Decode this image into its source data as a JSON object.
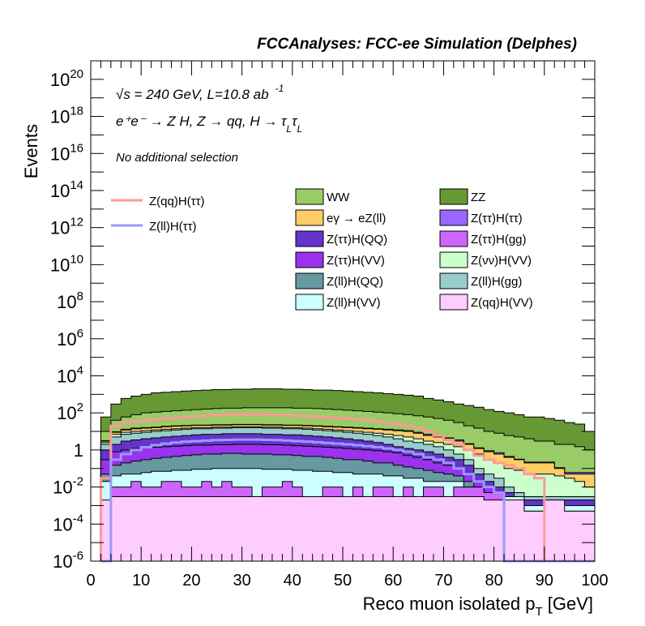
{
  "chart_data": {
    "type": "area",
    "title": "FCCAnalyses: FCC-ee Simulation (Delphes)",
    "ylabel": "Events",
    "xlabel_main": "Reco muon isolated p",
    "xlabel_sub": "T",
    "xlabel_unit": " [GeV]",
    "xlim": [
      0,
      100
    ],
    "ylim": [
      1e-06,
      1e+21
    ],
    "log_y": true,
    "x_ticks": [
      "0",
      "10",
      "20",
      "30",
      "40",
      "50",
      "60",
      "70",
      "80",
      "90",
      "100"
    ],
    "y_ticks": [
      {
        "base": "10",
        "exp": "-6",
        "val": 1e-06
      },
      {
        "base": "10",
        "exp": "-4",
        "val": 0.0001
      },
      {
        "base": "10",
        "exp": "-2",
        "val": 0.01
      },
      {
        "base": "1",
        "exp": "",
        "val": 1
      },
      {
        "base": "10",
        "exp": "2",
        "val": 100.0
      },
      {
        "base": "10",
        "exp": "4",
        "val": 10000.0
      },
      {
        "base": "10",
        "exp": "6",
        "val": 1000000.0
      },
      {
        "base": "10",
        "exp": "8",
        "val": 100000000.0
      },
      {
        "base": "10",
        "exp": "10",
        "val": 10000000000.0
      },
      {
        "base": "10",
        "exp": "12",
        "val": 1000000000000.0
      },
      {
        "base": "10",
        "exp": "14",
        "val": 100000000000000.0
      },
      {
        "base": "10",
        "exp": "16",
        "val": 1e+16
      },
      {
        "base": "10",
        "exp": "18",
        "val": 1e+18
      },
      {
        "base": "10",
        "exp": "20",
        "val": 1e+20
      }
    ],
    "annotations": {
      "energy": "√s = 240 GeV, L=10.8 ab",
      "energy_sup": "-1",
      "process": "e⁺e⁻ → Z H, Z → qq, H → τ",
      "process_sub1": "L",
      "process_tau2": "τ",
      "process_sub2": "L",
      "selection": "No additional selection"
    },
    "bin_edges": [
      2,
      4,
      6,
      8,
      10,
      12,
      14,
      16,
      18,
      20,
      22,
      24,
      26,
      28,
      30,
      32,
      34,
      36,
      38,
      40,
      42,
      44,
      46,
      48,
      50,
      52,
      54,
      56,
      58,
      60,
      62,
      64,
      66,
      68,
      70,
      72,
      74,
      76,
      78,
      80,
      82,
      84,
      86,
      88,
      90,
      92,
      94,
      96,
      98,
      100
    ],
    "stack_cumulative": [
      {
        "name": "Z(qq)H(VV)",
        "color": "#ffccff",
        "values": [
          0.002,
          0.003,
          0.003,
          0.003,
          0.003,
          0.003,
          0.003,
          0.003,
          0.003,
          0.003,
          0.003,
          0.003,
          0.003,
          0.003,
          0.003,
          0.003,
          0.003,
          0.003,
          0.003,
          0.003,
          0.003,
          0.003,
          0.003,
          0.003,
          0.003,
          0.003,
          0.003,
          0.003,
          0.003,
          0.003,
          0.003,
          0.003,
          0.003,
          0.003,
          0.003,
          0.003,
          0.003,
          0.003,
          0.002,
          0.002,
          0.002,
          0.002,
          0.0005,
          0.0005,
          0.002,
          0.002,
          0.0005,
          0.0005,
          0.0005
        ]
      },
      {
        "name": "Z(ττ)H(gg)",
        "color": "#cc66ff",
        "values": [
          0.001,
          0.01,
          0.01,
          0.02,
          0.01,
          0.01,
          0.02,
          0.02,
          0.01,
          0.01,
          0.02,
          0.01,
          0.02,
          0.01,
          0.01,
          1e-05,
          0.01,
          0.01,
          0.02,
          0.01,
          1e-05,
          1e-05,
          0.01,
          0.01,
          1e-05,
          0.01,
          1e-05,
          0.01,
          0.01,
          1e-05,
          0.01,
          1e-05,
          0.01,
          0.01,
          1e-05,
          0.01,
          0.01,
          0.01,
          0.005,
          0.005,
          0.001,
          0.001,
          0.0005,
          0.0005,
          0.0005,
          0.0005,
          0.0005,
          0.0005,
          0.0005
        ]
      },
      {
        "name": "Z(ll)H(VV)",
        "color": "#ccffff",
        "values": [
          0.02,
          0.04,
          0.05,
          0.05,
          0.06,
          0.07,
          0.07,
          0.08,
          0.08,
          0.09,
          0.09,
          0.1,
          0.1,
          0.1,
          0.1,
          0.1,
          0.09,
          0.09,
          0.09,
          0.08,
          0.08,
          0.07,
          0.07,
          0.06,
          0.06,
          0.05,
          0.05,
          0.05,
          0.04,
          0.04,
          0.03,
          0.03,
          0.02,
          0.02,
          0.02,
          0.02,
          0.01,
          0.01,
          0.005,
          0.005,
          0.003,
          0.003,
          0.001,
          0.001,
          0.001,
          0.001,
          0.001,
          0.001,
          0.001
        ]
      },
      {
        "name": "Z(ll)H(QQ)",
        "color": "#6699a0",
        "values": [
          0.05,
          0.15,
          0.2,
          0.25,
          0.3,
          0.35,
          0.4,
          0.45,
          0.5,
          0.55,
          0.6,
          0.6,
          0.65,
          0.65,
          0.6,
          0.6,
          0.6,
          0.55,
          0.55,
          0.5,
          0.45,
          0.45,
          0.4,
          0.35,
          0.3,
          0.3,
          0.25,
          0.2,
          0.2,
          0.15,
          0.12,
          0.1,
          0.08,
          0.06,
          0.05,
          0.04,
          0.02,
          0.01,
          0.005,
          0.003,
          0.002,
          0.002,
          0.001,
          0.001,
          0.001,
          0.001,
          0.001,
          0.001,
          0.001
        ]
      },
      {
        "name": "Z(ττ)H(VV)",
        "color": "#9933ee",
        "values": [
          0.3,
          0.8,
          1.0,
          1.2,
          1.3,
          1.4,
          1.5,
          1.6,
          1.7,
          1.8,
          1.8,
          1.9,
          1.9,
          2.0,
          2.0,
          2.0,
          1.9,
          1.9,
          1.8,
          1.7,
          1.6,
          1.5,
          1.4,
          1.3,
          1.2,
          1.1,
          1.0,
          0.9,
          0.8,
          0.7,
          0.5,
          0.4,
          0.3,
          0.2,
          0.15,
          0.1,
          0.05,
          0.02,
          0.01,
          0.005,
          0.003,
          0.002,
          0.001,
          0.001,
          0.001,
          0.001,
          0.001,
          0.001,
          0.001
        ]
      },
      {
        "name": "Z(ττ)H(QQ)",
        "color": "#6633cc",
        "values": [
          1,
          2,
          3,
          3.5,
          4,
          4.5,
          5,
          5.5,
          6,
          6.5,
          7,
          7,
          7.5,
          7.5,
          7.5,
          7.5,
          7,
          7,
          6.5,
          6.5,
          6,
          5.5,
          5,
          4.5,
          4,
          3.5,
          3,
          2.5,
          2,
          1.5,
          1.2,
          1,
          0.8,
          0.6,
          0.4,
          0.3,
          0.15,
          0.05,
          0.02,
          0.01,
          0.005,
          0.003,
          0.002,
          0.002,
          0.002,
          0.002,
          0.002,
          0.002,
          0.002
        ]
      },
      {
        "name": "Z(ll)H(gg)",
        "color": "#99cccc",
        "values": [
          2,
          5,
          7,
          8,
          9,
          10,
          11,
          12,
          13,
          14,
          14,
          15,
          15,
          16,
          16,
          16,
          15,
          15,
          14,
          14,
          13,
          12,
          11,
          10,
          9,
          8,
          7,
          6,
          5,
          4,
          3,
          2.5,
          2,
          1.5,
          1,
          0.6,
          0.3,
          0.1,
          0.05,
          0.03,
          0.01,
          0.005,
          0.003,
          0.003,
          0.003,
          0.003,
          0.003,
          0.003,
          0.003
        ]
      },
      {
        "name": "Z(νν)H(VV)",
        "color": "#ccffcc",
        "values": [
          2.5,
          7,
          9,
          10,
          11,
          12,
          13,
          14,
          15,
          16,
          16,
          17,
          17,
          18,
          18,
          18,
          17,
          17,
          16,
          16,
          15,
          14,
          13,
          12,
          11,
          10,
          9,
          8,
          7,
          6,
          5,
          4,
          3,
          2.5,
          2,
          1.5,
          1,
          0.6,
          0.3,
          0.2,
          0.1,
          0.08,
          0.05,
          0.05,
          0.05,
          0.04,
          0.03,
          0.02,
          0.01
        ]
      },
      {
        "name": "eγ → eZ(ll)",
        "color": "#ffcc66",
        "values": [
          3,
          9,
          12,
          14,
          15,
          16,
          18,
          19,
          20,
          21,
          21,
          22,
          22,
          23,
          23,
          23,
          22,
          22,
          21,
          21,
          20,
          19,
          18,
          17,
          16,
          15,
          14,
          13,
          12,
          11,
          10,
          8,
          6,
          5,
          4,
          3,
          2,
          1.2,
          0.8,
          0.6,
          0.4,
          0.3,
          0.2,
          0.2,
          0.2,
          0.1,
          0.05,
          0.05,
          0.05
        ]
      },
      {
        "name": "Z(ττ)H(ττ)",
        "color": "#9966ff",
        "values": [
          3.2,
          9.5,
          13,
          15,
          16,
          17,
          19,
          20,
          21,
          22,
          22,
          23,
          23,
          24,
          24,
          24,
          23,
          23,
          22,
          22,
          21,
          20,
          19,
          18,
          17,
          16,
          15,
          14,
          13,
          12,
          11,
          9,
          7,
          5.5,
          4.5,
          3.5,
          2.2,
          1.3,
          0.9,
          0.7,
          0.45,
          0.32,
          0.22,
          0.22,
          0.22,
          0.11,
          0.06,
          0.06,
          0.06
        ]
      },
      {
        "name": "WW",
        "color": "#99cc66",
        "values": [
          10,
          40,
          60,
          80,
          100,
          110,
          120,
          130,
          140,
          150,
          160,
          170,
          180,
          180,
          190,
          190,
          190,
          190,
          190,
          180,
          180,
          170,
          160,
          150,
          140,
          130,
          120,
          110,
          100,
          90,
          80,
          70,
          60,
          50,
          40,
          30,
          20,
          15,
          10,
          8,
          6,
          5,
          4,
          3,
          3,
          2,
          2,
          1.5,
          1
        ]
      },
      {
        "name": "ZZ",
        "color": "#669933",
        "values": [
          60,
          300,
          600,
          800,
          1000,
          1200,
          1300,
          1400,
          1500,
          1600,
          1700,
          1800,
          1800,
          1900,
          1900,
          2000,
          2000,
          2000,
          1900,
          1900,
          1800,
          1700,
          1700,
          1600,
          1500,
          1400,
          1300,
          1200,
          1100,
          1000,
          900,
          800,
          600,
          500,
          400,
          300,
          250,
          200,
          150,
          120,
          100,
          80,
          60,
          60,
          50,
          40,
          30,
          25,
          10
        ]
      }
    ],
    "series_lines": [
      {
        "name": "Z(qq)H(ττ)",
        "color": "#ff9999",
        "values": [
          0.03,
          20,
          30,
          35,
          40,
          45,
          50,
          55,
          60,
          65,
          70,
          75,
          78,
          80,
          80,
          80,
          78,
          76,
          74,
          70,
          66,
          62,
          58,
          54,
          50,
          45,
          40,
          35,
          30,
          25,
          20,
          15,
          10,
          6,
          3.5,
          2,
          1,
          0.5,
          0.3,
          0.2,
          0.15,
          0.1,
          0.05,
          0.03,
          1e-07,
          1e-07,
          1e-07,
          1e-07,
          1e-07
        ]
      },
      {
        "name": "Z(ll)H(ττ)",
        "color": "#9999ff",
        "values": [
          1e-07,
          0.3,
          0.6,
          1,
          1.4,
          1.8,
          2.2,
          2.5,
          2.8,
          3,
          3.2,
          3.4,
          3.5,
          3.6,
          3.6,
          3.6,
          3.5,
          3.4,
          3.2,
          3,
          2.8,
          2.6,
          2.4,
          2.2,
          2,
          1.8,
          1.6,
          1.4,
          1.2,
          1,
          0.8,
          0.6,
          0.4,
          0.3,
          0.2,
          0.1,
          0.05,
          0.02,
          0.01,
          0.005,
          1e-07,
          1e-07,
          1e-07,
          1e-07,
          1e-07,
          1e-07,
          1e-07,
          1e-07,
          1e-07
        ]
      }
    ],
    "legend_lines": [
      "Z(qq)H(ττ)",
      "Z(ll)H(ττ)"
    ],
    "legend_stack": [
      {
        "label": "WW",
        "color": "#99cc66"
      },
      {
        "label": "ZZ",
        "color": "#669933"
      },
      {
        "label": "eγ → eZ(ll)",
        "color": "#ffcc66"
      },
      {
        "label": "Z(ττ)H(ττ)",
        "color": "#9966ff"
      },
      {
        "label": "Z(ττ)H(QQ)",
        "color": "#6633cc"
      },
      {
        "label": "Z(ττ)H(gg)",
        "color": "#cc66ff"
      },
      {
        "label": "Z(ττ)H(VV)",
        "color": "#9933ee"
      },
      {
        "label": "Z(νν)H(VV)",
        "color": "#ccffcc"
      },
      {
        "label": "Z(ll)H(QQ)",
        "color": "#6699a0"
      },
      {
        "label": "Z(ll)H(gg)",
        "color": "#99cccc"
      },
      {
        "label": "Z(ll)H(VV)",
        "color": "#ccffff"
      },
      {
        "label": "Z(qq)H(VV)",
        "color": "#ffccff"
      }
    ]
  }
}
